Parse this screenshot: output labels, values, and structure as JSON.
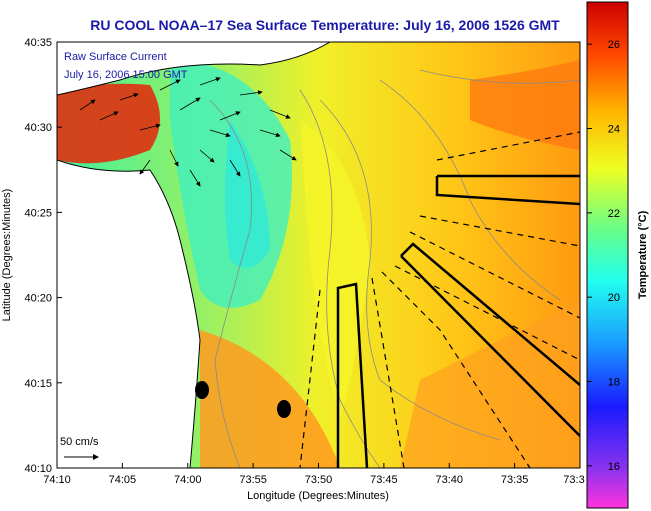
{
  "title": "RU COOL  NOAA–17  Sea Surface Temperature:  July 16, 2006 1526 GMT",
  "legend_line1": "Raw Surface Current",
  "legend_line2": "July 16, 2006 15:00 GMT",
  "scale_label": "50 cm/s",
  "map": {
    "xlabel": "Longitude (Degrees:Minutes)",
    "ylabel": "Latitude (Degrees:Minutes)",
    "x_ticks": [
      "74:10",
      "74:05",
      "74:00",
      "73:55",
      "73:50",
      "73:45",
      "73:40",
      "73:35",
      "73:3"
    ],
    "y_ticks": [
      "40:35",
      "40:30",
      "40:25",
      "40:20",
      "40:15",
      "40:10"
    ]
  },
  "colorbar": {
    "label": "Temperature (°C)",
    "ticks": [
      "26",
      "24",
      "22",
      "20",
      "18",
      "16"
    ],
    "min": 15,
    "max": 27
  },
  "colors": {
    "title": "#1a1aa8",
    "land": "#ffffff"
  }
}
